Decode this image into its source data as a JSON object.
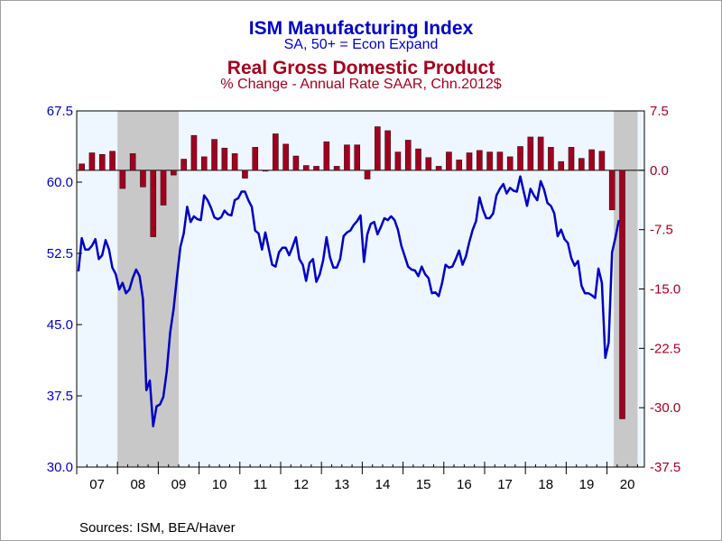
{
  "chart_data": {
    "type": "line+bar",
    "title": "ISM Manufacturing Index",
    "subtitle": "SA, 50+ = Econ Expand",
    "title2": "Real Gross Domestic Product",
    "subtitle2": "% Change - Annual Rate     SAAR, Chn.2012$",
    "source": "Sources:  ISM, BEA/Haver",
    "colors": {
      "ism": "#0000c0",
      "gdp": "#a00020",
      "plot_bg": "#eef6ff",
      "recession": "#c8c8c8"
    },
    "xlim": [
      2007.0,
      2020.917
    ],
    "x_ticks": [
      "07",
      "08",
      "09",
      "10",
      "11",
      "12",
      "13",
      "14",
      "15",
      "16",
      "17",
      "18",
      "19",
      "20"
    ],
    "left_axis": {
      "range": [
        30.0,
        67.5
      ],
      "ticks": [
        "30.0",
        "37.5",
        "45.0",
        "52.5",
        "60.0",
        "67.5"
      ]
    },
    "right_axis": {
      "range": [
        -37.5,
        7.5
      ],
      "ticks": [
        "-37.5",
        "-30.0",
        "-22.5",
        "-15.0",
        "-7.5",
        "0.0",
        "7.5"
      ]
    },
    "recessions": [
      [
        2008.0,
        2009.5
      ],
      [
        2020.167,
        2020.75
      ]
    ],
    "series": [
      {
        "name": "ISM Manufacturing Index",
        "axis": "left",
        "start": 2007.0,
        "step_months": 1,
        "values": [
          50.6,
          54.1,
          52.9,
          52.9,
          53.3,
          54.0,
          51.9,
          52.3,
          53.9,
          52.9,
          51.0,
          50.3,
          48.7,
          49.4,
          48.3,
          48.7,
          49.9,
          50.8,
          50.1,
          47.7,
          38.1,
          39.1,
          34.3,
          36.4,
          36.6,
          37.4,
          40.1,
          44.2,
          46.6,
          50.0,
          53.2,
          54.6,
          57.4,
          55.8,
          56.4,
          56.1,
          56.0,
          58.6,
          58.1,
          57.3,
          56.3,
          56.1,
          56.3,
          57.0,
          56.6,
          56.5,
          58.1,
          58.3,
          59.0,
          59.0,
          58.1,
          57.4,
          54.9,
          54.6,
          52.9,
          54.7,
          53.0,
          51.3,
          51.1,
          52.6,
          53.1,
          53.1,
          52.3,
          53.2,
          54.2,
          51.9,
          51.3,
          49.6,
          51.5,
          51.9,
          49.5,
          50.3,
          51.8,
          54.2,
          52.1,
          51.0,
          51.0,
          51.9,
          54.3,
          54.7,
          54.9,
          55.5,
          55.9,
          56.5,
          51.6,
          54.5,
          55.6,
          55.8,
          54.5,
          55.3,
          56.2,
          56.0,
          56.4,
          56.0,
          55.0,
          53.3,
          52.2,
          51.1,
          50.8,
          50.7,
          50.1,
          51.1,
          50.3,
          49.9,
          48.3,
          48.4,
          48.0,
          49.4,
          51.3,
          51.0,
          51.1,
          51.9,
          52.8,
          51.3,
          52.2,
          53.7,
          55.0,
          55.9,
          58.4,
          57.1,
          56.2,
          56.2,
          56.7,
          58.6,
          59.3,
          59.8,
          58.8,
          59.4,
          59.1,
          59.0,
          60.6,
          59.0,
          57.5,
          59.3,
          58.6,
          58.1,
          60.1,
          59.2,
          57.8,
          57.5,
          56.7,
          54.3,
          55.0,
          54.0,
          53.6,
          52.0,
          51.2,
          51.7,
          49.1,
          48.3,
          48.3,
          48.1,
          47.8,
          50.9,
          49.4,
          41.5,
          43.1,
          52.6,
          54.2,
          56.0
        ]
      },
      {
        "name": "Real Gross Domestic Product",
        "axis": "right",
        "type": "bar",
        "quarters": [
          "2007Q1",
          "2007Q2",
          "2007Q3",
          "2007Q4",
          "2008Q1",
          "2008Q2",
          "2008Q3",
          "2008Q4",
          "2009Q1",
          "2009Q2",
          "2009Q3",
          "2009Q4",
          "2010Q1",
          "2010Q2",
          "2010Q3",
          "2010Q4",
          "2011Q1",
          "2011Q2",
          "2011Q3",
          "2011Q4",
          "2012Q1",
          "2012Q2",
          "2012Q3",
          "2012Q4",
          "2013Q1",
          "2013Q2",
          "2013Q3",
          "2013Q4",
          "2014Q1",
          "2014Q2",
          "2014Q3",
          "2014Q4",
          "2015Q1",
          "2015Q2",
          "2015Q3",
          "2015Q4",
          "2016Q1",
          "2016Q2",
          "2016Q3",
          "2016Q4",
          "2017Q1",
          "2017Q2",
          "2017Q3",
          "2017Q4",
          "2018Q1",
          "2018Q2",
          "2018Q3",
          "2018Q4",
          "2019Q1",
          "2019Q2",
          "2019Q3",
          "2019Q4",
          "2020Q1",
          "2020Q2",
          "2020Q3"
        ],
        "values": [
          0.8,
          2.2,
          2.0,
          2.4,
          -2.3,
          2.1,
          -2.1,
          -8.4,
          -4.4,
          -0.6,
          1.4,
          4.4,
          1.7,
          3.9,
          2.8,
          2.1,
          -1.0,
          2.9,
          -0.1,
          4.6,
          3.3,
          1.8,
          0.6,
          0.5,
          3.6,
          0.5,
          3.2,
          3.2,
          -1.1,
          5.5,
          5.0,
          2.3,
          3.8,
          2.7,
          1.6,
          0.5,
          2.3,
          1.3,
          2.2,
          2.5,
          2.3,
          2.3,
          1.7,
          3.0,
          4.2,
          4.2,
          2.9,
          1.1,
          2.9,
          1.5,
          2.6,
          2.4,
          -5.0,
          -31.4,
          null
        ]
      }
    ]
  }
}
